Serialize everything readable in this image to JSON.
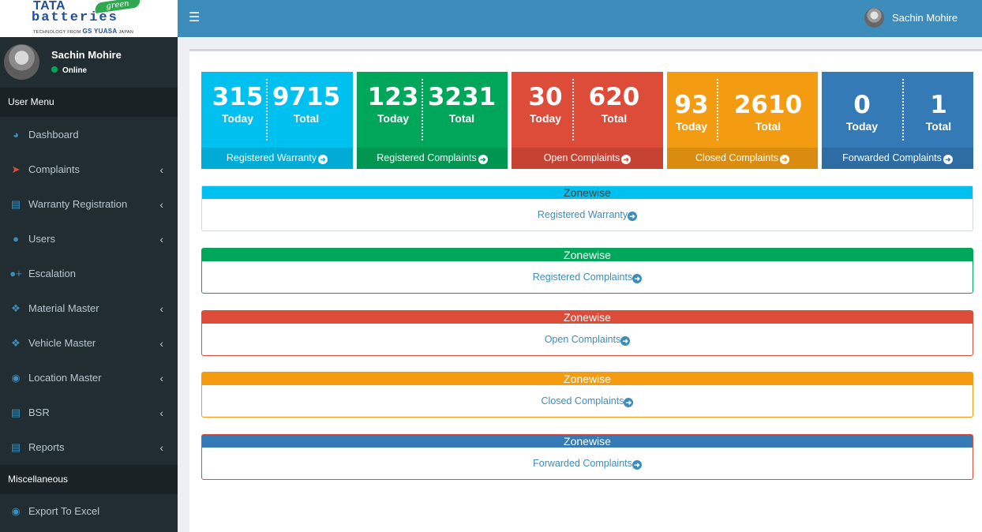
{
  "brand": {
    "tata": "TATA",
    "green": "green",
    "batteries": "batteries",
    "tagline_prefix": "TECHNOLOGY FROM",
    "tagline_brand": "GS YUASA",
    "tagline_suffix": "JAPAN"
  },
  "topbar": {
    "user_name": "Sachin Mohire",
    "menu_icon": "hamburger-icon"
  },
  "user_panel": {
    "name": "Sachin Mohire",
    "status": "Online"
  },
  "sidebar": {
    "header_user_menu": "User Menu",
    "header_misc": "Miscellaneous",
    "items": [
      {
        "label": "Dashboard",
        "icon": "dashboard-icon"
      },
      {
        "label": "Complaints",
        "icon": "bullhorn-icon"
      },
      {
        "label": "Warranty Registration",
        "icon": "list-icon"
      },
      {
        "label": "Users",
        "icon": "user-icon"
      },
      {
        "label": "Escalation",
        "icon": "user-plus-icon"
      },
      {
        "label": "Material Master",
        "icon": "cubes-icon"
      },
      {
        "label": "Vehicle Master",
        "icon": "cubes-icon"
      },
      {
        "label": "Location Master",
        "icon": "globe-icon"
      },
      {
        "label": "BSR",
        "icon": "file-icon"
      },
      {
        "label": "Reports",
        "icon": "file-icon"
      },
      {
        "label": "Export To Excel",
        "icon": "eye-icon"
      }
    ]
  },
  "stats": [
    {
      "today": "315",
      "total": "9715",
      "today_label": "Today",
      "total_label": "Total",
      "link": "Registered Warranty",
      "color": "#00c0ef"
    },
    {
      "today": "123",
      "total": "3231",
      "today_label": "Today",
      "total_label": "Total",
      "link": "Registered Complaints",
      "color": "#00a65a"
    },
    {
      "today": "30",
      "total": "620",
      "today_label": "Today",
      "total_label": "Total",
      "link": "Open Complaints",
      "color": "#dd4b39"
    },
    {
      "today": "93",
      "total": "2610",
      "today_label": "Today",
      "total_label": "Total",
      "link": "Closed Complaints",
      "color": "#f39c12"
    },
    {
      "today": "0",
      "total": "1",
      "today_label": "Today",
      "total_label": "Total",
      "link": "Forwarded Complaints",
      "color": "#337ab7"
    }
  ],
  "zones": [
    {
      "title": "Zonewise",
      "link": "Registered Warranty",
      "color": "#00c0ef"
    },
    {
      "title": "Zonewise",
      "link": "Registered Complaints",
      "color": "#00a65a"
    },
    {
      "title": "Zonewise",
      "link": "Open Complaints",
      "color": "#dd4b39"
    },
    {
      "title": "Zonewise",
      "link": "Closed Complaints",
      "color": "#f39c12"
    },
    {
      "title": "Zonewise",
      "link": "Forwarded Complaints",
      "color": "#337ab7"
    }
  ]
}
